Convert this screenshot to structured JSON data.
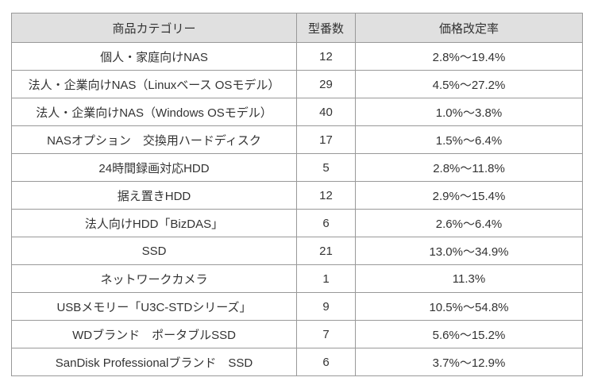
{
  "chart_data": {
    "type": "table",
    "title": "",
    "headers": [
      "商品カテゴリー",
      "型番数",
      "価格改定率"
    ],
    "rows": [
      [
        "個人・家庭向けNAS",
        "12",
        "2.8%～19.4%"
      ],
      [
        "法人・企業向けNAS（Linuxベース OSモデル）",
        "29",
        "4.5%～27.2%"
      ],
      [
        "法人・企業向けNAS（Windows OSモデル）",
        "40",
        "1.0%～3.8%"
      ],
      [
        "NASオプション　交換用ハードディスク",
        "17",
        "1.5%～6.4%"
      ],
      [
        "24時間録画対応HDD",
        "5",
        "2.8%～11.8%"
      ],
      [
        "据え置きHDD",
        "12",
        "2.9%～15.4%"
      ],
      [
        "法人向けHDD「BizDAS」",
        "6",
        "2.6%～6.4%"
      ],
      [
        "SSD",
        "21",
        "13.0%～34.9%"
      ],
      [
        "ネットワークカメラ",
        "1",
        "11.3%"
      ],
      [
        "USBメモリー「U3C-STDシリーズ」",
        "9",
        "10.5%～54.8%"
      ],
      [
        "WDブランド　ポータブルSSD",
        "7",
        "5.6%～15.2%"
      ],
      [
        "SanDisk Professionalブランド　SSD",
        "6",
        "3.7%～12.9%"
      ]
    ],
    "layout": {
      "grid": "all-borders",
      "header_background": "#e0e0e0",
      "border_color": "#999999",
      "text_color": "#333333",
      "alignment": "center"
    }
  }
}
